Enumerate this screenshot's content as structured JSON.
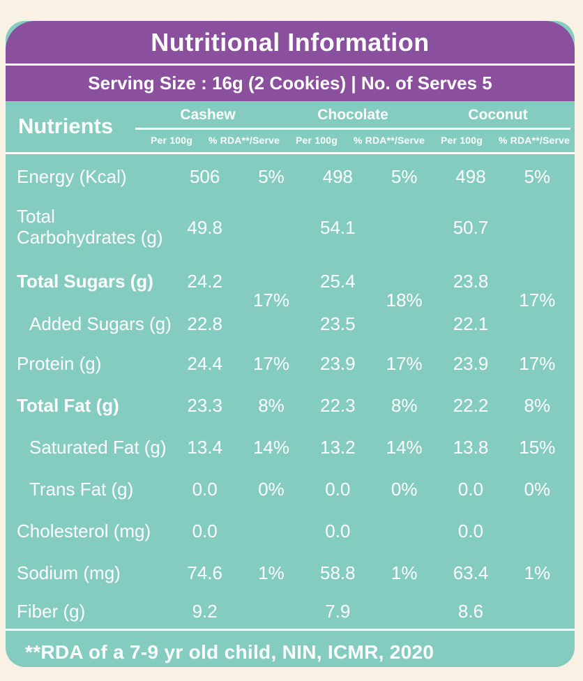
{
  "colors": {
    "background": "#f8f1e4",
    "card_teal": "#84cbc0",
    "header_purple": "#8a4f9d",
    "text": "#ffffff"
  },
  "header": {
    "title": "Nutritional Information",
    "serving_line": "Serving Size : 16g (2 Cookies) | No. of Serves 5"
  },
  "table": {
    "nutrients_label": "Nutrients",
    "products": [
      "Cashew",
      "Chocolate",
      "Coconut"
    ],
    "subcolumns": [
      "Per 100g",
      "% RDA**/Serve"
    ],
    "rows": [
      {
        "label": "Energy (Kcal)",
        "values": [
          "506",
          "5%",
          "498",
          "5%",
          "498",
          "5%"
        ]
      },
      {
        "label": "Total Carbohydrates (g)",
        "values": [
          "49.8",
          "",
          "54.1",
          "",
          "50.7",
          ""
        ]
      },
      {
        "label": "Total Sugars (g)",
        "values": [
          "24.2",
          "17%",
          "25.4",
          "18%",
          "23.8",
          "17%"
        ]
      },
      {
        "label": "Added Sugars (g)",
        "values": [
          "22.8",
          "",
          "23.5",
          "",
          "22.1",
          ""
        ]
      },
      {
        "label": "Protein (g)",
        "values": [
          "24.4",
          "17%",
          "23.9",
          "17%",
          "23.9",
          "17%"
        ]
      },
      {
        "label": "Total Fat (g)",
        "values": [
          "23.3",
          "8%",
          "22.3",
          "8%",
          "22.2",
          "8%"
        ]
      },
      {
        "label": "Saturated Fat (g)",
        "values": [
          "13.4",
          "14%",
          "13.2",
          "14%",
          "13.8",
          "15%"
        ]
      },
      {
        "label": "Trans Fat (g)",
        "values": [
          "0.0",
          "0%",
          "0.0",
          "0%",
          "0.0",
          "0%"
        ]
      },
      {
        "label": "Cholesterol (mg)",
        "values": [
          "0.0",
          "",
          "0.0",
          "",
          "0.0",
          ""
        ]
      },
      {
        "label": "Sodium (mg)",
        "values": [
          "74.6",
          "1%",
          "58.8",
          "1%",
          "63.4",
          "1%"
        ]
      },
      {
        "label": "Fiber (g)",
        "values": [
          "9.2",
          "",
          "7.9",
          "",
          "8.6",
          ""
        ]
      }
    ]
  },
  "footer": {
    "note": "**RDA of a 7-9 yr old child, NIN, ICMR, 2020"
  }
}
